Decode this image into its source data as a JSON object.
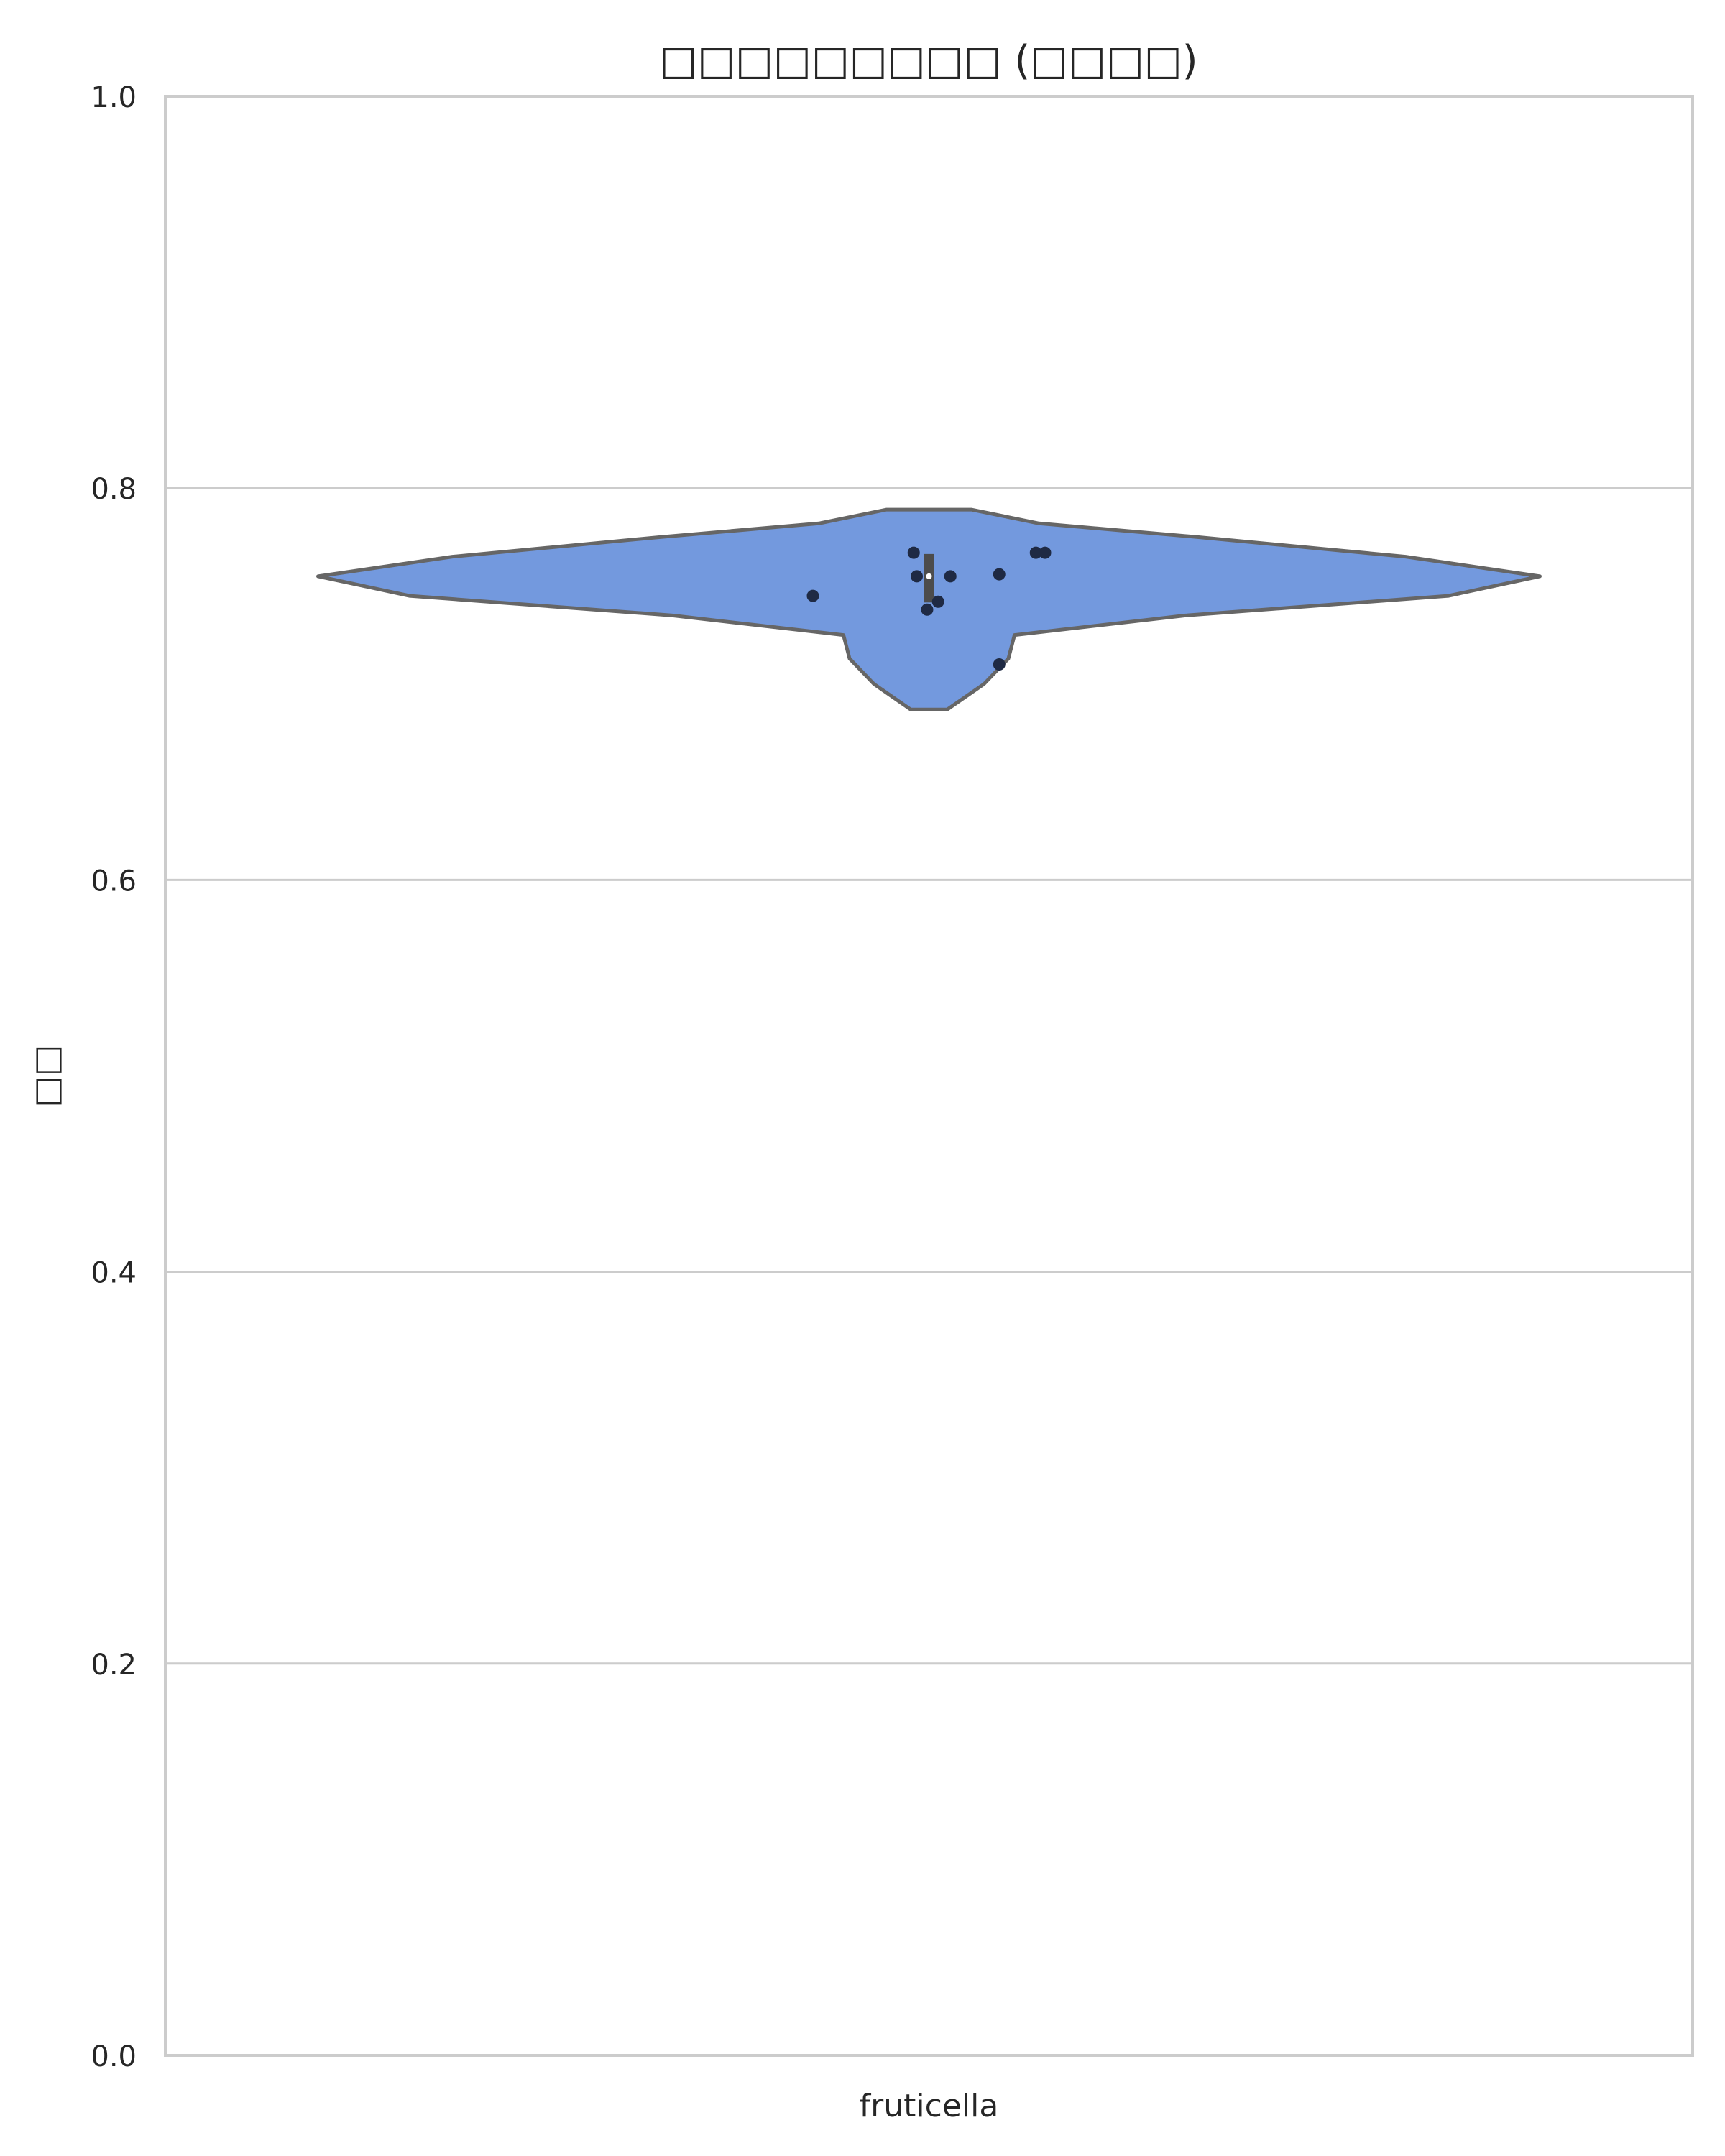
{
  "chart_data": {
    "type": "violin",
    "title": "□□□□□□□□□ (□□□□)",
    "xlabel": "",
    "ylabel": "□□",
    "categories": [
      "fruticella"
    ],
    "ylim": [
      0.0,
      1.0
    ],
    "yticks": [
      0.0,
      0.2,
      0.4,
      0.6,
      0.8,
      1.0
    ],
    "ytick_labels": [
      "0.0",
      "0.2",
      "0.4",
      "0.6",
      "0.8",
      "1.0"
    ],
    "grid": "horizontal",
    "fill_color": "#7399de",
    "outline_color": "#666666",
    "point_color": "#1f2a44",
    "density_profile": [
      {
        "y": 0.687,
        "w": 0.03
      },
      {
        "y": 0.7,
        "w": 0.09
      },
      {
        "y": 0.713,
        "w": 0.13
      },
      {
        "y": 0.725,
        "w": 0.14
      },
      {
        "y": 0.735,
        "w": 0.42
      },
      {
        "y": 0.745,
        "w": 0.85
      },
      {
        "y": 0.755,
        "w": 1.0
      },
      {
        "y": 0.765,
        "w": 0.78
      },
      {
        "y": 0.775,
        "w": 0.44
      },
      {
        "y": 0.782,
        "w": 0.18
      },
      {
        "y": 0.789,
        "w": 0.07
      }
    ],
    "box": {
      "q1": 0.742,
      "median": 0.755,
      "q3": 0.766
    },
    "points": [
      {
        "y": 0.767,
        "jitter": -0.025
      },
      {
        "y": 0.755,
        "jitter": -0.02
      },
      {
        "y": 0.742,
        "jitter": 0.015
      },
      {
        "y": 0.738,
        "jitter": -0.003
      },
      {
        "y": 0.745,
        "jitter": -0.19
      },
      {
        "y": 0.755,
        "jitter": 0.035
      },
      {
        "y": 0.756,
        "jitter": 0.115
      },
      {
        "y": 0.767,
        "jitter": 0.175
      },
      {
        "y": 0.767,
        "jitter": 0.19
      },
      {
        "y": 0.71,
        "jitter": 0.115
      }
    ]
  }
}
